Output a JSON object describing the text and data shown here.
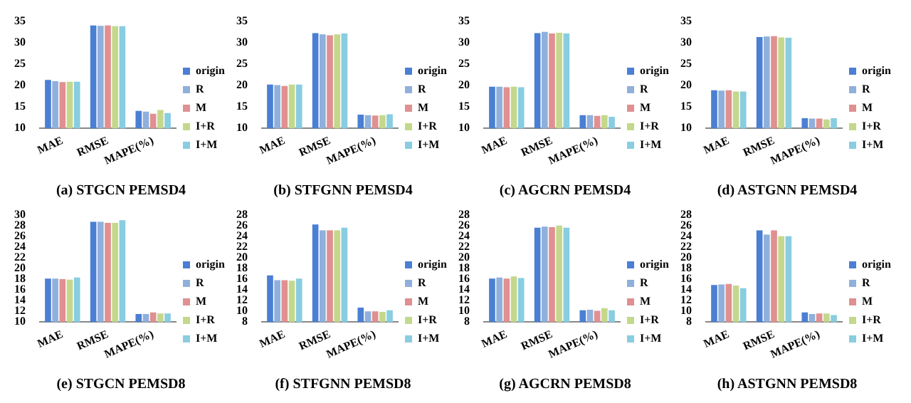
{
  "chart_data": [
    {
      "type": "bar",
      "title": "(a) STGCN PEMSD4",
      "categories": [
        "MAE",
        "RMSE",
        "MAPE(%)"
      ],
      "ylim": [
        10,
        35
      ],
      "yticks": [
        10,
        15,
        20,
        25,
        30,
        35
      ],
      "legend": "right",
      "grid": false,
      "series": [
        {
          "name": "origin",
          "color": "#4a7fd4",
          "values": [
            21.3,
            34.0,
            14.1
          ]
        },
        {
          "name": "R",
          "color": "#8fb0dc",
          "values": [
            21.0,
            33.9,
            13.9
          ]
        },
        {
          "name": "M",
          "color": "#e09090",
          "values": [
            20.8,
            34.0,
            13.4
          ]
        },
        {
          "name": "I+R",
          "color": "#c4d88c",
          "values": [
            20.9,
            33.8,
            14.3
          ]
        },
        {
          "name": "I+M",
          "color": "#88cde0",
          "values": [
            20.9,
            33.8,
            13.6
          ]
        }
      ]
    },
    {
      "type": "bar",
      "title": "(b) STFGNN PEMSD4",
      "categories": [
        "MAE",
        "RMSE",
        "MAPE(%)"
      ],
      "ylim": [
        10,
        35
      ],
      "yticks": [
        10,
        15,
        20,
        25,
        30,
        35
      ],
      "legend": "right",
      "grid": false,
      "series": [
        {
          "name": "origin",
          "color": "#4a7fd4",
          "values": [
            20.2,
            32.2,
            13.2
          ]
        },
        {
          "name": "R",
          "color": "#8fb0dc",
          "values": [
            20.1,
            31.9,
            13.1
          ]
        },
        {
          "name": "M",
          "color": "#e09090",
          "values": [
            19.9,
            31.7,
            13.0
          ]
        },
        {
          "name": "I+R",
          "color": "#c4d88c",
          "values": [
            20.2,
            31.9,
            13.1
          ]
        },
        {
          "name": "I+M",
          "color": "#88cde0",
          "values": [
            20.2,
            32.1,
            13.3
          ]
        }
      ]
    },
    {
      "type": "bar",
      "title": "(c) AGCRN PEMSD4",
      "categories": [
        "MAE",
        "RMSE",
        "MAPE(%)"
      ],
      "ylim": [
        10,
        35
      ],
      "yticks": [
        10,
        15,
        20,
        25,
        30,
        35
      ],
      "legend": "right",
      "grid": false,
      "series": [
        {
          "name": "origin",
          "color": "#4a7fd4",
          "values": [
            19.7,
            32.2,
            13.1
          ]
        },
        {
          "name": "R",
          "color": "#8fb0dc",
          "values": [
            19.7,
            32.5,
            13.1
          ]
        },
        {
          "name": "M",
          "color": "#e09090",
          "values": [
            19.6,
            32.1,
            12.9
          ]
        },
        {
          "name": "I+R",
          "color": "#c4d88c",
          "values": [
            19.7,
            32.3,
            13.1
          ]
        },
        {
          "name": "I+M",
          "color": "#88cde0",
          "values": [
            19.6,
            32.1,
            12.7
          ]
        }
      ]
    },
    {
      "type": "bar",
      "title": "(d) ASTGNN PEMSD4",
      "categories": [
        "MAE",
        "RMSE",
        "MAPE(%)"
      ],
      "ylim": [
        10,
        35
      ],
      "yticks": [
        10,
        15,
        20,
        25,
        30,
        35
      ],
      "legend": "right",
      "grid": false,
      "series": [
        {
          "name": "origin",
          "color": "#4a7fd4",
          "values": [
            18.9,
            31.3,
            12.4
          ]
        },
        {
          "name": "R",
          "color": "#8fb0dc",
          "values": [
            18.8,
            31.4,
            12.3
          ]
        },
        {
          "name": "M",
          "color": "#e09090",
          "values": [
            18.9,
            31.5,
            12.3
          ]
        },
        {
          "name": "I+R",
          "color": "#c4d88c",
          "values": [
            18.6,
            31.2,
            12.1
          ]
        },
        {
          "name": "I+M",
          "color": "#88cde0",
          "values": [
            18.6,
            31.1,
            12.4
          ]
        }
      ]
    },
    {
      "type": "bar",
      "title": "(e) STGCN PEMSD8",
      "categories": [
        "MAE",
        "RMSE",
        "MAPE(%)"
      ],
      "ylim": [
        10,
        30
      ],
      "yticks": [
        10,
        12,
        14,
        16,
        18,
        20,
        22,
        24,
        26,
        28,
        30
      ],
      "legend": "right",
      "grid": false,
      "series": [
        {
          "name": "origin",
          "color": "#4a7fd4",
          "values": [
            18.1,
            28.7,
            11.5
          ]
        },
        {
          "name": "R",
          "color": "#8fb0dc",
          "values": [
            18.1,
            28.7,
            11.5
          ]
        },
        {
          "name": "M",
          "color": "#e09090",
          "values": [
            18.0,
            28.5,
            11.8
          ]
        },
        {
          "name": "I+R",
          "color": "#c4d88c",
          "values": [
            17.9,
            28.5,
            11.6
          ]
        },
        {
          "name": "I+M",
          "color": "#88cde0",
          "values": [
            18.3,
            29.0,
            11.6
          ]
        }
      ]
    },
    {
      "type": "bar",
      "title": "(f) STFGNN PEMSD8",
      "categories": [
        "MAE",
        "RMSE",
        "MAPE(%)"
      ],
      "ylim": [
        8,
        28
      ],
      "yticks": [
        8,
        10,
        12,
        14,
        16,
        18,
        20,
        22,
        24,
        26,
        28
      ],
      "legend": "right",
      "grid": false,
      "series": [
        {
          "name": "origin",
          "color": "#4a7fd4",
          "values": [
            16.7,
            26.2,
            10.7
          ]
        },
        {
          "name": "R",
          "color": "#8fb0dc",
          "values": [
            15.8,
            25.1,
            10.0
          ]
        },
        {
          "name": "M",
          "color": "#e09090",
          "values": [
            15.8,
            25.1,
            10.0
          ]
        },
        {
          "name": "I+R",
          "color": "#c4d88c",
          "values": [
            15.7,
            25.1,
            9.9
          ]
        },
        {
          "name": "I+M",
          "color": "#88cde0",
          "values": [
            16.1,
            25.6,
            10.2
          ]
        }
      ]
    },
    {
      "type": "bar",
      "title": "(g) AGCRN PEMSD8",
      "categories": [
        "MAE",
        "RMSE",
        "MAPE(%)"
      ],
      "ylim": [
        8,
        28
      ],
      "yticks": [
        8,
        10,
        12,
        14,
        16,
        18,
        20,
        22,
        24,
        26,
        28
      ],
      "legend": "right",
      "grid": false,
      "series": [
        {
          "name": "origin",
          "color": "#4a7fd4",
          "values": [
            16.1,
            25.6,
            10.2
          ]
        },
        {
          "name": "R",
          "color": "#8fb0dc",
          "values": [
            16.3,
            25.8,
            10.3
          ]
        },
        {
          "name": "M",
          "color": "#e09090",
          "values": [
            16.1,
            25.7,
            10.1
          ]
        },
        {
          "name": "I+R",
          "color": "#c4d88c",
          "values": [
            16.5,
            26.0,
            10.6
          ]
        },
        {
          "name": "I+M",
          "color": "#88cde0",
          "values": [
            16.2,
            25.6,
            10.2
          ]
        }
      ]
    },
    {
      "type": "bar",
      "title": "(h) ASTGNN PEMSD8",
      "categories": [
        "MAE",
        "RMSE",
        "MAPE(%)"
      ],
      "ylim": [
        8,
        28
      ],
      "yticks": [
        8,
        10,
        12,
        14,
        16,
        18,
        20,
        22,
        24,
        26,
        28
      ],
      "legend": "right",
      "grid": false,
      "series": [
        {
          "name": "origin",
          "color": "#4a7fd4",
          "values": [
            14.9,
            25.1,
            9.8
          ]
        },
        {
          "name": "R",
          "color": "#8fb0dc",
          "values": [
            15.0,
            24.3,
            9.5
          ]
        },
        {
          "name": "M",
          "color": "#e09090",
          "values": [
            15.1,
            25.1,
            9.6
          ]
        },
        {
          "name": "I+R",
          "color": "#c4d88c",
          "values": [
            14.8,
            24.0,
            9.6
          ]
        },
        {
          "name": "I+M",
          "color": "#88cde0",
          "values": [
            14.3,
            24.0,
            9.3
          ]
        }
      ]
    }
  ]
}
